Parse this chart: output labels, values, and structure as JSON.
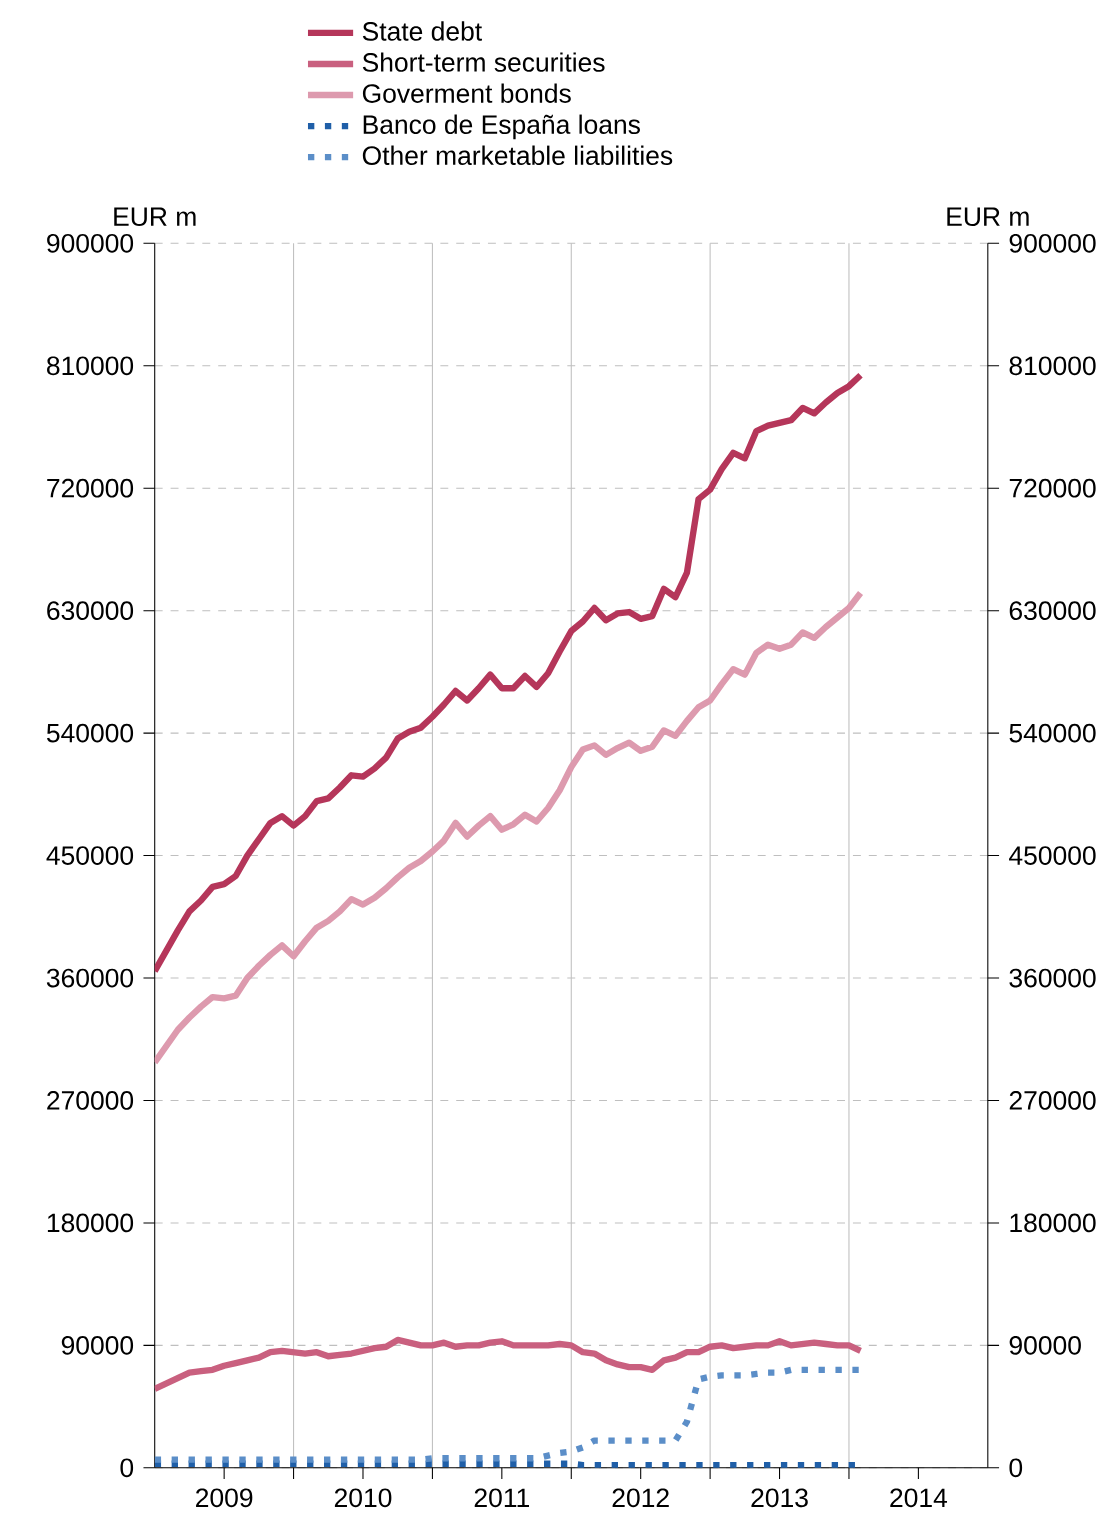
{
  "chart_data": {
    "type": "line",
    "ylabel": "EUR m",
    "y2label": "EUR m",
    "legend": "top",
    "grid": true,
    "xlim": [
      "2009-01-01",
      "2015-01-01"
    ],
    "xticks": [
      {
        "value": "2009-07-01",
        "label": "2009"
      },
      {
        "value": "2010-07-01",
        "label": "2010"
      },
      {
        "value": "2011-07-01",
        "label": "2011"
      },
      {
        "value": "2012-07-01",
        "label": "2012"
      },
      {
        "value": "2013-07-01",
        "label": "2013"
      },
      {
        "value": "2014-07-01",
        "label": "2014"
      },
      {
        "value": "2010-01-01",
        "label": null
      },
      {
        "value": "2011-01-01",
        "label": null
      },
      {
        "value": "2012-01-01",
        "label": null
      },
      {
        "value": "2013-01-01",
        "label": null
      },
      {
        "value": "2014-01-01",
        "label": null
      }
    ],
    "ylim": [
      0,
      900000
    ],
    "yticks": [
      0,
      90000,
      180000,
      270000,
      360000,
      450000,
      540000,
      630000,
      720000,
      810000,
      900000
    ],
    "y2lim": [
      0,
      900000
    ],
    "y2ticks": [
      0,
      90000,
      180000,
      270000,
      360000,
      450000,
      540000,
      630000,
      720000,
      810000,
      900000
    ],
    "x": [
      "2009-01",
      "2009-02",
      "2009-03",
      "2009-04",
      "2009-05",
      "2009-06",
      "2009-07",
      "2009-08",
      "2009-09",
      "2009-10",
      "2009-11",
      "2009-12",
      "2010-01",
      "2010-02",
      "2010-03",
      "2010-04",
      "2010-05",
      "2010-06",
      "2010-07",
      "2010-08",
      "2010-09",
      "2010-10",
      "2010-11",
      "2010-12",
      "2011-01",
      "2011-02",
      "2011-03",
      "2011-04",
      "2011-05",
      "2011-06",
      "2011-07",
      "2011-08",
      "2011-09",
      "2011-10",
      "2011-11",
      "2011-12",
      "2012-01",
      "2012-02",
      "2012-03",
      "2012-04",
      "2012-05",
      "2012-06",
      "2012-07",
      "2012-08",
      "2012-09",
      "2012-10",
      "2012-11",
      "2012-12",
      "2013-01",
      "2013-02",
      "2013-03",
      "2013-04",
      "2013-05",
      "2013-06",
      "2013-07",
      "2013-08",
      "2013-09",
      "2013-10",
      "2013-11",
      "2013-12",
      "2014-01",
      "2014-02"
    ],
    "series": [
      {
        "name": "State debt",
        "color": "#b5365a",
        "line_style": "solid",
        "values": [
          365000,
          380000,
          395000,
          409000,
          417000,
          427000,
          429000,
          435000,
          450000,
          462000,
          474000,
          479000,
          472000,
          479000,
          490000,
          492000,
          500000,
          509000,
          508000,
          514000,
          522000,
          536000,
          541000,
          544000,
          552000,
          561000,
          571000,
          564000,
          573000,
          583000,
          573000,
          573000,
          582000,
          574000,
          584000,
          600000,
          615000,
          622000,
          632000,
          623000,
          628000,
          629000,
          624000,
          626000,
          646000,
          640000,
          658000,
          712000,
          719000,
          734000,
          746000,
          742000,
          762000,
          766000,
          768000,
          770000,
          779000,
          775000,
          783000,
          790000,
          795000,
          803000
        ]
      },
      {
        "name": "Short-term securities",
        "color": "#c9607f",
        "line_style": "solid",
        "values": [
          58000,
          62000,
          66000,
          70000,
          71000,
          72000,
          75000,
          77000,
          79000,
          81000,
          85000,
          86000,
          85000,
          84000,
          85000,
          82000,
          83000,
          84000,
          86000,
          88000,
          89000,
          94000,
          92000,
          90000,
          90000,
          92000,
          89000,
          90000,
          90000,
          92000,
          93000,
          90000,
          90000,
          90000,
          90000,
          91000,
          90000,
          85000,
          84000,
          79000,
          76000,
          74000,
          74000,
          72000,
          79000,
          81000,
          85000,
          85000,
          89000,
          90000,
          88000,
          89000,
          90000,
          90000,
          93000,
          90000,
          91000,
          92000,
          91000,
          90000,
          90000,
          86000
        ]
      },
      {
        "name": "Goverment bonds",
        "color": "#dd9aae",
        "line_style": "solid",
        "values": [
          298000,
          310000,
          322000,
          331000,
          339000,
          346000,
          345000,
          347000,
          360000,
          369000,
          377000,
          384000,
          376000,
          387000,
          397000,
          402000,
          409000,
          418000,
          414000,
          419000,
          426000,
          434000,
          441000,
          446000,
          453000,
          461000,
          474000,
          464000,
          472000,
          479000,
          469000,
          473000,
          480000,
          475000,
          485000,
          498000,
          515000,
          528000,
          531000,
          524000,
          529000,
          533000,
          527000,
          530000,
          542000,
          538000,
          549000,
          559000,
          564000,
          576000,
          587000,
          583000,
          599000,
          605000,
          602000,
          605000,
          614000,
          610000,
          618000,
          625000,
          632000,
          643000
        ]
      },
      {
        "name": "Banco de España loans",
        "color": "#1f5fa8",
        "line_style": "dotted",
        "values": [
          3000,
          3000,
          3000,
          3000,
          3000,
          3000,
          3000,
          3000,
          3000,
          3000,
          3000,
          3000,
          3000,
          3000,
          3000,
          3000,
          3000,
          3000,
          3000,
          3000,
          3000,
          3000,
          3000,
          3000,
          3000,
          3000,
          3000,
          3000,
          3000,
          3000,
          3000,
          3000,
          3000,
          3000,
          3000,
          3000,
          3000,
          2000,
          2000,
          2000,
          2000,
          2000,
          2000,
          2000,
          2000,
          2000,
          2000,
          2000,
          2000,
          2000,
          2000,
          2000,
          2000,
          2000,
          2000,
          2000,
          2000,
          2000,
          2000,
          2000,
          2000,
          2000
        ]
      },
      {
        "name": "Other marketable liabilities",
        "color": "#5b8ec8",
        "line_style": "dotted",
        "values": [
          6000,
          6000,
          6000,
          6000,
          6000,
          6000,
          6000,
          6000,
          6000,
          6000,
          6000,
          6000,
          6000,
          6000,
          6000,
          6000,
          6000,
          6000,
          6000,
          6000,
          6000,
          6000,
          6000,
          6000,
          7000,
          7000,
          7000,
          7000,
          7000,
          7000,
          7000,
          7000,
          7000,
          7000,
          9000,
          11000,
          12000,
          15000,
          20000,
          20000,
          20000,
          20000,
          20000,
          20000,
          20000,
          20000,
          34000,
          65000,
          67000,
          68000,
          68000,
          68000,
          69000,
          70000,
          70000,
          72000,
          72000,
          72000,
          72000,
          72000,
          72000,
          72000
        ]
      }
    ]
  }
}
